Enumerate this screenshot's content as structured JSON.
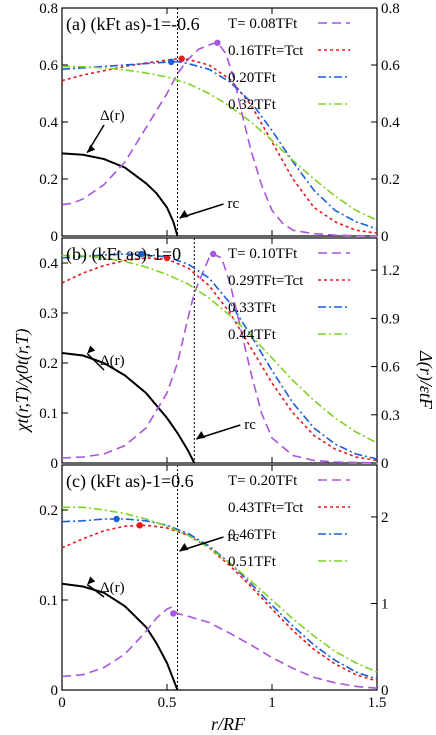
{
  "figure": {
    "ylabel_left": "χt(r,T)/χ0t(r,T)",
    "ylabel_right": "Δ(r)/εtF",
    "xlabel": "r/RF"
  },
  "chart_data": [
    {
      "type": "line",
      "panel_label": "(a)",
      "coupling_label": "(kFt as)-1=-0.6",
      "xlim": [
        0,
        1.5
      ],
      "ylim": [
        0,
        0.8
      ],
      "x_ticks": [],
      "y_ticks": [
        0,
        0.2,
        0.4,
        0.6,
        0.8
      ],
      "y_tick_labels": [
        "0",
        "0.2",
        "0.4",
        "0.6",
        "0.8"
      ],
      "y2_ticks": [
        0,
        0.2,
        0.4,
        0.6,
        0.8
      ],
      "y2_tick_labels": [
        "0",
        "0.2",
        "0.4",
        "0.6",
        "0.8"
      ],
      "y2lim": [
        0,
        0.8
      ],
      "rc": 0.55,
      "rc_label": "rc",
      "delta_label": "Δ(r)",
      "delta": {
        "x": [
          0,
          0.1,
          0.2,
          0.3,
          0.4,
          0.45,
          0.5,
          0.53,
          0.55
        ],
        "y": [
          0.29,
          0.285,
          0.27,
          0.24,
          0.185,
          0.15,
          0.1,
          0.05,
          0.0
        ]
      },
      "series": [
        {
          "name": "T= 0.08TFt",
          "color": "#a855e0",
          "dash": "9,5",
          "x": [
            0,
            0.05,
            0.1,
            0.2,
            0.3,
            0.4,
            0.5,
            0.55,
            0.6,
            0.65,
            0.7,
            0.74,
            0.78,
            0.82,
            0.86,
            0.9,
            0.95,
            1.0,
            1.05,
            1.1,
            1.2,
            1.3,
            1.4,
            1.5
          ],
          "y": [
            0.11,
            0.115,
            0.13,
            0.18,
            0.26,
            0.38,
            0.5,
            0.57,
            0.62,
            0.655,
            0.67,
            0.68,
            0.64,
            0.55,
            0.42,
            0.3,
            0.18,
            0.09,
            0.045,
            0.02,
            0.008,
            0.003,
            0.001,
            0.0
          ]
        },
        {
          "name": "0.16TFt=Tct",
          "color": "#e8181e",
          "dash": "3,3",
          "x": [
            0,
            0.1,
            0.2,
            0.3,
            0.4,
            0.5,
            0.55,
            0.6,
            0.7,
            0.8,
            0.9,
            1.0,
            1.1,
            1.2,
            1.3,
            1.4,
            1.5
          ],
          "y": [
            0.545,
            0.565,
            0.58,
            0.595,
            0.607,
            0.617,
            0.622,
            0.62,
            0.6,
            0.55,
            0.46,
            0.33,
            0.2,
            0.1,
            0.05,
            0.02,
            0.01
          ]
        },
        {
          "name": "0.20TFt",
          "color": "#1a5fd8",
          "dash": "8,3,2,3",
          "x": [
            0,
            0.1,
            0.2,
            0.3,
            0.4,
            0.5,
            0.55,
            0.6,
            0.7,
            0.8,
            0.9,
            1.0,
            1.1,
            1.2,
            1.3,
            1.4,
            1.5
          ],
          "y": [
            0.585,
            0.59,
            0.595,
            0.6,
            0.605,
            0.61,
            0.612,
            0.605,
            0.585,
            0.54,
            0.47,
            0.37,
            0.26,
            0.16,
            0.09,
            0.05,
            0.025
          ]
        },
        {
          "name": "0.32TFt",
          "color": "#7ed321",
          "dash": "8,3,2,3",
          "x": [
            0,
            0.1,
            0.2,
            0.3,
            0.4,
            0.5,
            0.6,
            0.7,
            0.8,
            0.9,
            1.0,
            1.1,
            1.2,
            1.3,
            1.4,
            1.5
          ],
          "y": [
            0.595,
            0.594,
            0.59,
            0.583,
            0.572,
            0.558,
            0.535,
            0.5,
            0.455,
            0.4,
            0.335,
            0.265,
            0.2,
            0.14,
            0.09,
            0.055
          ]
        }
      ],
      "markers": [
        {
          "x": 0.74,
          "y": 0.678,
          "color": "#a855e0"
        },
        {
          "x": 0.57,
          "y": 0.622,
          "color": "#e8181e"
        },
        {
          "x": 0.52,
          "y": 0.611,
          "color": "#1a5fd8"
        }
      ]
    },
    {
      "type": "line",
      "panel_label": "(b)",
      "coupling_label": "(kFt as)-1=0",
      "xlim": [
        0,
        1.5
      ],
      "ylim": [
        0,
        0.45
      ],
      "x_ticks": [],
      "y_ticks": [
        0,
        0.1,
        0.2,
        0.3,
        0.4
      ],
      "y_tick_labels": [
        "0",
        "0.1",
        "0.2",
        "0.3",
        "0.4"
      ],
      "y2lim": [
        0,
        1.4
      ],
      "y2_ticks": [
        0,
        0.3,
        0.6,
        0.9,
        1.2
      ],
      "y2_tick_labels": [
        "0",
        "0.3",
        "0.6",
        "0.9",
        "1.2"
      ],
      "rc": 0.63,
      "rc_label": "rc",
      "delta_label": "Δ(r)",
      "delta": {
        "x": [
          0,
          0.1,
          0.2,
          0.3,
          0.4,
          0.5,
          0.55,
          0.6,
          0.63
        ],
        "y": [
          0.22,
          0.215,
          0.2,
          0.175,
          0.14,
          0.09,
          0.06,
          0.025,
          0.0
        ]
      },
      "series": [
        {
          "name": "T= 0.10TFt",
          "color": "#a855e0",
          "dash": "9,5",
          "x": [
            0,
            0.1,
            0.2,
            0.3,
            0.4,
            0.5,
            0.55,
            0.6,
            0.63,
            0.66,
            0.7,
            0.72,
            0.76,
            0.8,
            0.85,
            0.9,
            0.95,
            1.0,
            1.1,
            1.2,
            1.3,
            1.5
          ],
          "y": [
            0.01,
            0.012,
            0.018,
            0.035,
            0.07,
            0.14,
            0.2,
            0.29,
            0.34,
            0.37,
            0.41,
            0.418,
            0.41,
            0.36,
            0.27,
            0.18,
            0.1,
            0.05,
            0.015,
            0.005,
            0.002,
            0.0
          ]
        },
        {
          "name": "0.29TFt=Tct",
          "color": "#e8181e",
          "dash": "3,3",
          "x": [
            0,
            0.1,
            0.2,
            0.3,
            0.4,
            0.5,
            0.6,
            0.7,
            0.8,
            0.9,
            1.0,
            1.1,
            1.2,
            1.3,
            1.4,
            1.5
          ],
          "y": [
            0.36,
            0.38,
            0.395,
            0.405,
            0.41,
            0.408,
            0.39,
            0.355,
            0.3,
            0.23,
            0.16,
            0.1,
            0.055,
            0.028,
            0.012,
            0.005
          ]
        },
        {
          "name": "0.33TFt",
          "color": "#1a5fd8",
          "dash": "8,3,2,3",
          "x": [
            0,
            0.1,
            0.2,
            0.3,
            0.4,
            0.5,
            0.6,
            0.7,
            0.8,
            0.9,
            1.0,
            1.1,
            1.2,
            1.3,
            1.4,
            1.5
          ],
          "y": [
            0.41,
            0.413,
            0.416,
            0.418,
            0.417,
            0.412,
            0.398,
            0.37,
            0.32,
            0.255,
            0.185,
            0.12,
            0.07,
            0.038,
            0.018,
            0.008
          ]
        },
        {
          "name": "0.44TFt",
          "color": "#7ed321",
          "dash": "8,3,2,3",
          "x": [
            0,
            0.1,
            0.2,
            0.3,
            0.4,
            0.5,
            0.6,
            0.7,
            0.8,
            0.9,
            1.0,
            1.1,
            1.2,
            1.3,
            1.4,
            1.5
          ],
          "y": [
            0.415,
            0.414,
            0.41,
            0.403,
            0.392,
            0.377,
            0.358,
            0.33,
            0.295,
            0.255,
            0.21,
            0.165,
            0.125,
            0.09,
            0.062,
            0.04
          ]
        }
      ],
      "markers": [
        {
          "x": 0.72,
          "y": 0.418,
          "color": "#a855e0"
        },
        {
          "x": 0.5,
          "y": 0.41,
          "color": "#e8181e"
        },
        {
          "x": 0.38,
          "y": 0.418,
          "color": "#1a5fd8"
        }
      ]
    },
    {
      "type": "line",
      "panel_label": "(c)",
      "coupling_label": "(kFt as)-1=0.6",
      "xlim": [
        0,
        1.5
      ],
      "ylim": [
        0,
        0.25
      ],
      "x_ticks": [
        0,
        0.5,
        1,
        1.5
      ],
      "x_tick_labels": [
        "0",
        "0.5",
        "1",
        "1.5"
      ],
      "y_ticks": [
        0,
        0.1,
        0.2
      ],
      "y_tick_labels": [
        "0",
        "0.1",
        "0.2"
      ],
      "y2lim": [
        0,
        2.6
      ],
      "y2_ticks": [
        0,
        1,
        2
      ],
      "y2_tick_labels": [
        "0",
        "1",
        "2"
      ],
      "rc": 0.55,
      "rc_label": "rc",
      "delta_label": "Δ(r)",
      "delta": {
        "x": [
          0,
          0.1,
          0.2,
          0.3,
          0.4,
          0.45,
          0.5,
          0.53,
          0.55
        ],
        "y": [
          0.118,
          0.115,
          0.108,
          0.093,
          0.07,
          0.052,
          0.03,
          0.012,
          0.0
        ]
      },
      "series": [
        {
          "name": "T= 0.20TFt",
          "color": "#a855e0",
          "dash": "9,5",
          "x": [
            0,
            0.1,
            0.2,
            0.3,
            0.4,
            0.45,
            0.5,
            0.52,
            0.55,
            0.6,
            0.7,
            0.8,
            0.9,
            1.0,
            1.1,
            1.2,
            1.3,
            1.4,
            1.5
          ],
          "y": [
            0.015,
            0.017,
            0.025,
            0.04,
            0.065,
            0.08,
            0.09,
            0.092,
            0.085,
            0.082,
            0.075,
            0.063,
            0.05,
            0.036,
            0.024,
            0.014,
            0.008,
            0.004,
            0.002
          ]
        },
        {
          "name": "0.43TFt=Tct",
          "color": "#e8181e",
          "dash": "3,3",
          "x": [
            0,
            0.1,
            0.2,
            0.3,
            0.4,
            0.5,
            0.6,
            0.7,
            0.8,
            0.9,
            1.0,
            1.1,
            1.2,
            1.3,
            1.4,
            1.5
          ],
          "y": [
            0.158,
            0.168,
            0.177,
            0.182,
            0.183,
            0.18,
            0.172,
            0.158,
            0.138,
            0.115,
            0.09,
            0.066,
            0.045,
            0.029,
            0.017,
            0.01
          ]
        },
        {
          "name": "0.46TFt",
          "color": "#1a5fd8",
          "dash": "8,3,2,3",
          "x": [
            0,
            0.1,
            0.2,
            0.3,
            0.4,
            0.5,
            0.6,
            0.7,
            0.8,
            0.9,
            1.0,
            1.1,
            1.2,
            1.3,
            1.4,
            1.5
          ],
          "y": [
            0.187,
            0.188,
            0.19,
            0.19,
            0.188,
            0.183,
            0.174,
            0.16,
            0.141,
            0.118,
            0.094,
            0.071,
            0.05,
            0.033,
            0.02,
            0.012
          ]
        },
        {
          "name": "0.51TFt",
          "color": "#7ed321",
          "dash": "8,3,2,3",
          "x": [
            0,
            0.1,
            0.2,
            0.3,
            0.4,
            0.5,
            0.6,
            0.7,
            0.8,
            0.9,
            1.0,
            1.1,
            1.2,
            1.3,
            1.4,
            1.5
          ],
          "y": [
            0.203,
            0.203,
            0.2,
            0.196,
            0.19,
            0.182,
            0.172,
            0.158,
            0.141,
            0.121,
            0.1,
            0.079,
            0.06,
            0.043,
            0.03,
            0.02
          ]
        }
      ],
      "markers": [
        {
          "x": 0.53,
          "y": 0.085,
          "color": "#a855e0"
        },
        {
          "x": 0.37,
          "y": 0.183,
          "color": "#e8181e"
        },
        {
          "x": 0.26,
          "y": 0.19,
          "color": "#1a5fd8"
        }
      ]
    }
  ]
}
